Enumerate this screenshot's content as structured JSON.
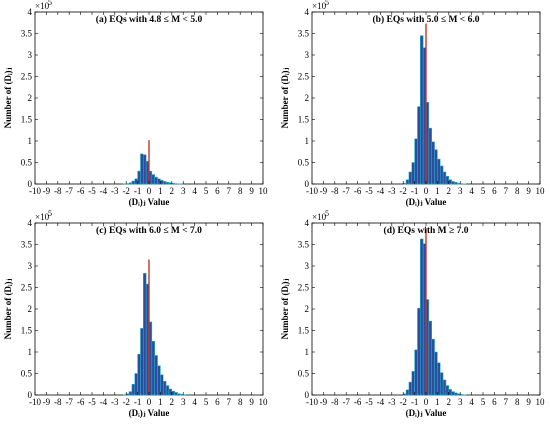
{
  "chart_data": [
    {
      "type": "bar",
      "title": "(a)  EQs with 4.8 ≤ M < 5.0",
      "xlabel": "(Dᵢ)ⱼ Value",
      "ylabel": "Number of  (Dᵢ)ⱼ",
      "y_multiplier": "×10",
      "y_multiplier_exp": "5",
      "xlim": [
        -10,
        10
      ],
      "ylim": [
        0,
        4
      ],
      "x_ticks": [
        "-10",
        "-9",
        "-8",
        "-7",
        "-6",
        "-5",
        "-4",
        "-3",
        "-2",
        "-1",
        "0",
        "1",
        "2",
        "3",
        "4",
        "5",
        "6",
        "7",
        "8",
        "9",
        "10"
      ],
      "y_ticks": [
        "0",
        "0.5",
        "1",
        "1.5",
        "2",
        "2.5",
        "3",
        "3.5",
        "4"
      ],
      "bin_width": 0.25,
      "bin_centers": [
        -2.125,
        -1.875,
        -1.625,
        -1.375,
        -1.125,
        -0.875,
        -0.625,
        -0.375,
        -0.125,
        0.125,
        0.375,
        0.625,
        0.875,
        1.125,
        1.375,
        1.625,
        1.875,
        2.125,
        2.375,
        2.625,
        2.875
      ],
      "values": [
        0.005,
        0.01,
        0.03,
        0.07,
        0.12,
        0.3,
        0.7,
        0.68,
        0.53,
        0.3,
        0.22,
        0.16,
        0.12,
        0.09,
        0.06,
        0.04,
        0.03,
        0.02,
        0.01,
        0.005,
        0.003
      ],
      "marker_x": 0,
      "marker_y": 1.02
    },
    {
      "type": "bar",
      "title": "(b)  EQs with 5.0 ≤ M < 6.0",
      "xlabel": "(Dᵢ)ⱼ Value",
      "ylabel": "Number of  (Dᵢ)ⱼ",
      "y_multiplier": "×10",
      "y_multiplier_exp": "5",
      "xlim": [
        -10,
        10
      ],
      "ylim": [
        0,
        4
      ],
      "x_ticks": [
        "-10",
        "-9",
        "-8",
        "-7",
        "-6",
        "-5",
        "-4",
        "-3",
        "-2",
        "-1",
        "0",
        "1",
        "2",
        "3",
        "4",
        "5",
        "6",
        "7",
        "8",
        "9",
        "10"
      ],
      "y_ticks": [
        "0",
        "0.5",
        "1",
        "1.5",
        "2",
        "2.5",
        "3",
        "3.5",
        "4"
      ],
      "bin_width": 0.25,
      "bin_centers": [
        -1.875,
        -1.625,
        -1.375,
        -1.125,
        -0.875,
        -0.625,
        -0.375,
        -0.125,
        0.125,
        0.375,
        0.625,
        0.875,
        1.125,
        1.375,
        1.625,
        1.875,
        2.125,
        2.375,
        2.625,
        2.875,
        3.125,
        3.375
      ],
      "values": [
        0.02,
        0.1,
        0.28,
        0.5,
        1.05,
        1.8,
        3.45,
        3.17,
        1.9,
        1.3,
        0.98,
        0.8,
        0.58,
        0.42,
        0.28,
        0.18,
        0.1,
        0.06,
        0.04,
        0.02,
        0.01,
        0.005
      ],
      "marker_x": 0,
      "marker_y": 3.73
    },
    {
      "type": "bar",
      "title": "(c)  EQs with 6.0 ≤ M < 7.0",
      "xlabel": "(Dᵢ)ⱼ Value",
      "ylabel": "Number of  (Dᵢ)ⱼ",
      "y_multiplier": "×10",
      "y_multiplier_exp": "5",
      "xlim": [
        -10,
        10
      ],
      "ylim": [
        0,
        4
      ],
      "x_ticks": [
        "-10",
        "-9",
        "-8",
        "-7",
        "-6",
        "-5",
        "-4",
        "-3",
        "-2",
        "-1",
        "0",
        "1",
        "2",
        "3",
        "4",
        "5",
        "6",
        "7",
        "8",
        "9",
        "10"
      ],
      "y_ticks": [
        "0",
        "0.5",
        "1",
        "1.5",
        "2",
        "2.5",
        "3",
        "3.5",
        "4"
      ],
      "bin_width": 0.25,
      "bin_centers": [
        -2.125,
        -1.875,
        -1.625,
        -1.375,
        -1.125,
        -0.875,
        -0.625,
        -0.375,
        -0.125,
        0.125,
        0.375,
        0.625,
        0.875,
        1.125,
        1.375,
        1.625,
        1.875,
        2.125,
        2.375,
        2.625,
        2.875,
        3.125
      ],
      "values": [
        0.01,
        0.03,
        0.08,
        0.25,
        0.5,
        0.95,
        1.55,
        2.83,
        2.58,
        1.7,
        1.25,
        0.92,
        0.68,
        0.47,
        0.32,
        0.22,
        0.14,
        0.09,
        0.06,
        0.03,
        0.02,
        0.01
      ],
      "marker_x": 0,
      "marker_y": 3.15
    },
    {
      "type": "bar",
      "title": "(d)  EQs with M ≥ 7.0",
      "xlabel": "(Dᵢ)ⱼ Value",
      "ylabel": "Number of  (Dᵢ)ⱼ",
      "y_multiplier": "×10",
      "y_multiplier_exp": "5",
      "xlim": [
        -10,
        10
      ],
      "ylim": [
        0,
        4
      ],
      "x_ticks": [
        "-10",
        "-9",
        "-8",
        "-7",
        "-6",
        "-5",
        "-4",
        "-3",
        "-2",
        "-1",
        "0",
        "1",
        "2",
        "3",
        "4",
        "5",
        "6",
        "7",
        "8",
        "9",
        "10"
      ],
      "y_ticks": [
        "0",
        "0.5",
        "1",
        "1.5",
        "2",
        "2.5",
        "3",
        "3.5",
        "4"
      ],
      "bin_width": 0.25,
      "bin_centers": [
        -1.875,
        -1.625,
        -1.375,
        -1.125,
        -0.875,
        -0.625,
        -0.375,
        -0.125,
        0.125,
        0.375,
        0.625,
        0.875,
        1.125,
        1.375,
        1.625,
        1.875,
        2.125,
        2.375,
        2.625,
        2.875,
        3.125,
        3.375
      ],
      "values": [
        0.03,
        0.12,
        0.3,
        0.55,
        1.05,
        2.02,
        3.63,
        3.52,
        2.22,
        1.72,
        1.3,
        1.0,
        0.75,
        0.52,
        0.35,
        0.22,
        0.13,
        0.08,
        0.05,
        0.03,
        0.015,
        0.005
      ],
      "marker_x": 0,
      "marker_y": 3.88
    }
  ],
  "colors": {
    "bar_fill": "#2f4b9c",
    "bar_edge": "#17c0d6",
    "marker": "#c0392b",
    "axis": "#000000"
  }
}
